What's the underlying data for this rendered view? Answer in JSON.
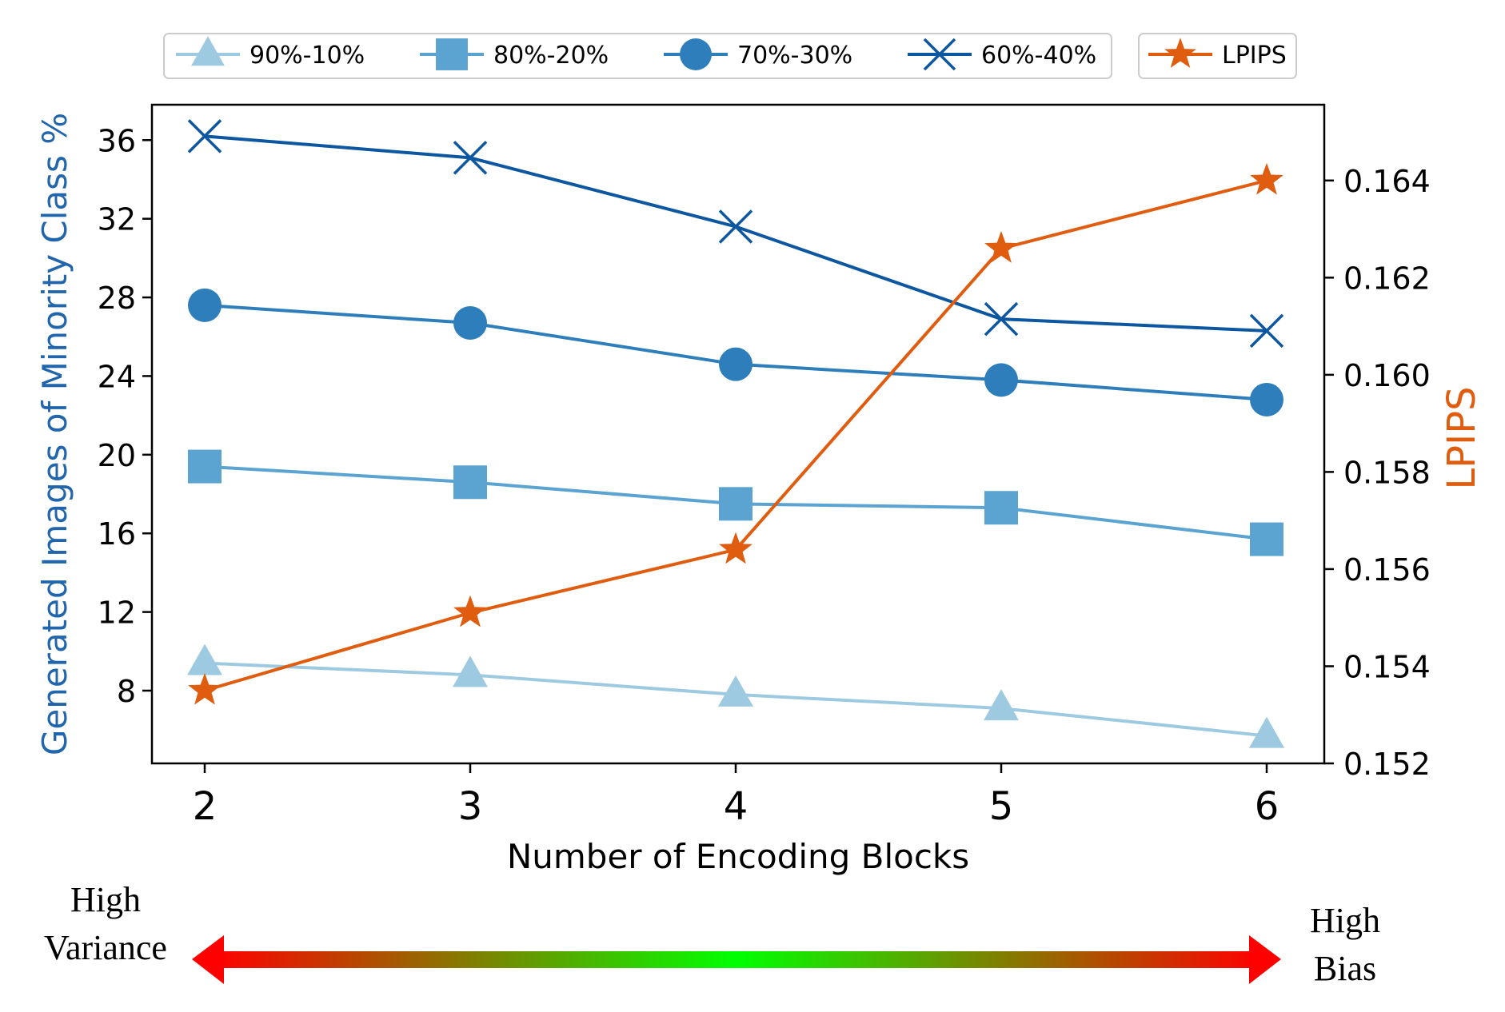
{
  "chart_data": {
    "type": "line",
    "title": "",
    "xlabel": "Number of Encoding Blocks",
    "ylabel": "Generated Images of Minority Class %",
    "y2label": "LPIPS",
    "x": [
      2,
      3,
      4,
      5,
      6
    ],
    "xticks": [
      "2",
      "3",
      "4",
      "5",
      "6"
    ],
    "ylim": [
      4.3,
      37.8
    ],
    "yticks": [
      8,
      12,
      16,
      20,
      24,
      28,
      32,
      36
    ],
    "y2lim": [
      0.152,
      0.16556
    ],
    "y2ticks": [
      "0.152",
      "0.154",
      "0.156",
      "0.158",
      "0.160",
      "0.162",
      "0.164"
    ],
    "legend_position": "top",
    "grid": false,
    "series": [
      {
        "name": "90%-10%",
        "axis": "left",
        "marker": "triangle",
        "color": "#9ecae1",
        "values": [
          9.4,
          8.8,
          7.8,
          7.1,
          5.7
        ]
      },
      {
        "name": "80%-20%",
        "axis": "left",
        "marker": "square",
        "color": "#5ba3d0",
        "values": [
          19.4,
          18.6,
          17.5,
          17.3,
          15.7
        ]
      },
      {
        "name": "70%-30%",
        "axis": "left",
        "marker": "circle",
        "color": "#2e7ebc",
        "values": [
          27.6,
          26.7,
          24.6,
          23.8,
          22.8
        ]
      },
      {
        "name": "60%-40%",
        "axis": "left",
        "marker": "x",
        "color": "#0d56a0",
        "values": [
          36.2,
          35.1,
          31.6,
          26.9,
          26.3
        ]
      },
      {
        "name": "LPIPS",
        "axis": "right",
        "marker": "star",
        "color": "#e05d10",
        "values": [
          0.1535,
          0.1551,
          0.1564,
          0.1626,
          0.164
        ]
      }
    ],
    "annotations": {
      "left": "High\nVariance",
      "right": "High\nBias"
    },
    "colors": {
      "left_axis_label": "#2166ac",
      "right_axis_label": "#e05d10",
      "arrow_end": "#ff0000",
      "arrow_mid": "#00ff00"
    }
  }
}
